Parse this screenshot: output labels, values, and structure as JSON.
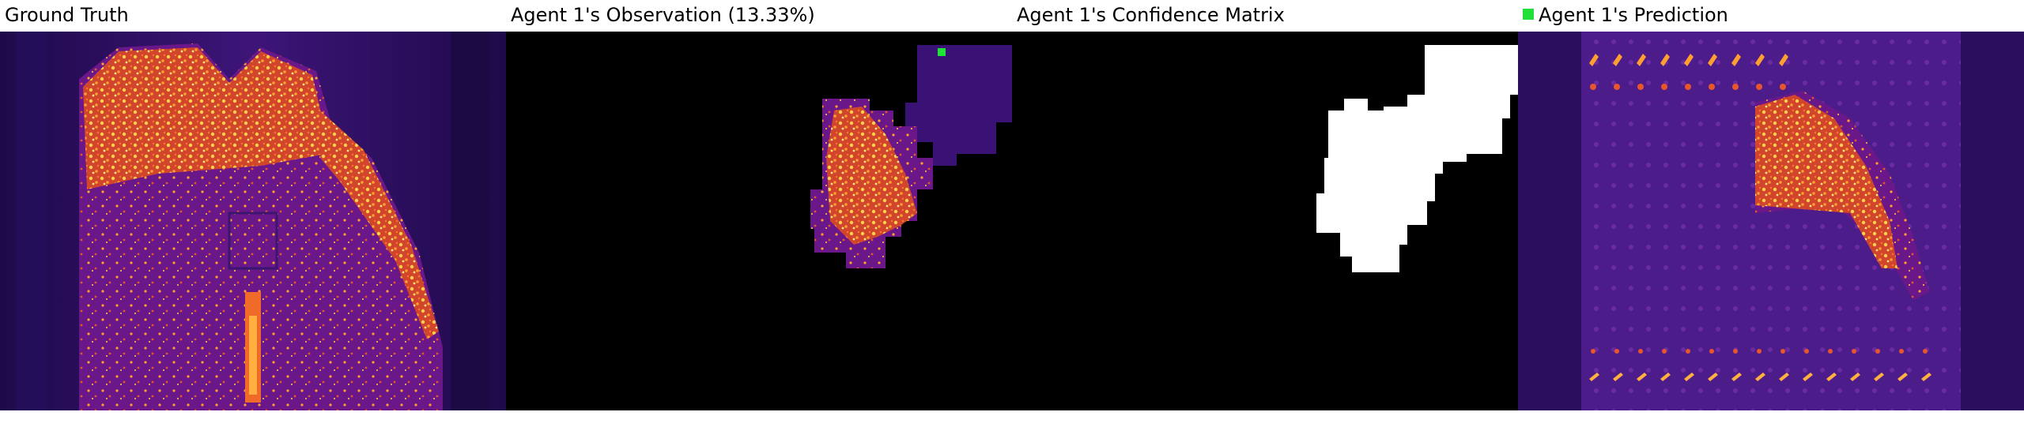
{
  "panels": {
    "ground_truth": {
      "title": "Ground Truth"
    },
    "observation": {
      "title": "Agent 1's Observation (13.33%)"
    },
    "confidence": {
      "title": "Agent 1's Confidence Matrix"
    },
    "prediction": {
      "title": "Agent 1's Prediction"
    }
  },
  "colors": {
    "background_dark": "#2a0a5c",
    "colormap": "inferno/plasma heat",
    "hot": "#ffd24a",
    "mask_white": "#ffffff",
    "marker_green": "#22e03a"
  }
}
